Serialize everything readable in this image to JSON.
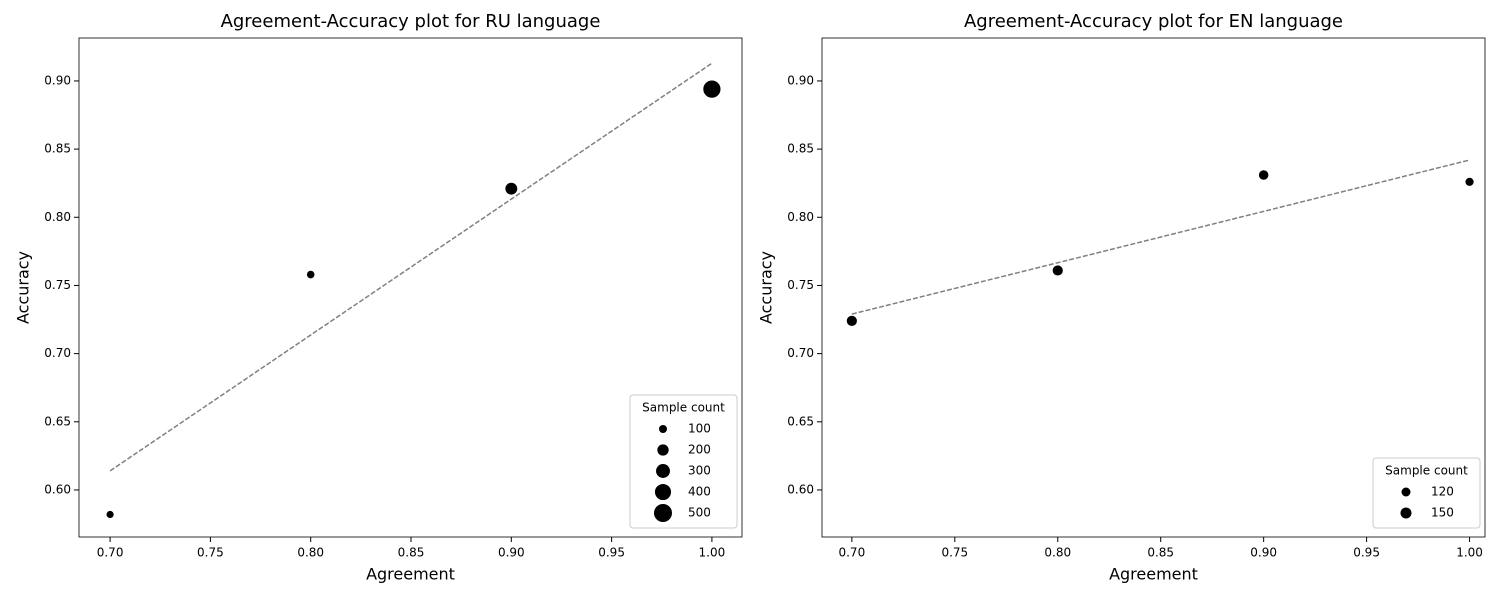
{
  "chart_data": [
    {
      "type": "scatter",
      "title": "Agreement-Accuracy plot for RU language",
      "x_label": "Agreement",
      "y_label": "Accuracy",
      "x": [
        0.7,
        0.8,
        0.9,
        1.0
      ],
      "y": [
        0.582,
        0.758,
        0.821,
        0.894
      ],
      "sizes": [
        100,
        110,
        250,
        500
      ],
      "color": "#000000",
      "trend": {
        "x": [
          0.7,
          1.0
        ],
        "y": [
          0.614,
          0.913
        ],
        "color": "#808080"
      },
      "legend_title": "Sample count",
      "legend_sizes": [
        100,
        200,
        300,
        400,
        500
      ],
      "legend_loc": "lower right",
      "xlim": [
        0.6845,
        1.015
      ],
      "ylim": [
        0.5655,
        0.9315
      ],
      "xticks": [
        {
          "value": 0.7,
          "label": "0.70"
        },
        0.75,
        {
          "value": 0.8,
          "label": "0.80"
        },
        0.85,
        {
          "value": 0.9,
          "label": "0.90"
        },
        0.95,
        {
          "value": 1.0,
          "label": "1.00"
        }
      ],
      "yticks": [
        {
          "value": 0.6,
          "label": "0.60"
        },
        0.65,
        {
          "value": 0.7,
          "label": "0.70"
        },
        0.75,
        {
          "value": 0.8,
          "label": "0.80"
        },
        0.85,
        {
          "value": 0.9,
          "label": "0.90"
        }
      ]
    },
    {
      "type": "scatter",
      "title": "Agreement-Accuracy plot for EN language",
      "x_label": "Agreement",
      "y_label": "Accuracy",
      "x": [
        0.7,
        0.8,
        0.9,
        1.0
      ],
      "y": [
        0.724,
        0.761,
        0.831,
        0.826
      ],
      "sizes": [
        150,
        150,
        140,
        120
      ],
      "color": "#000000",
      "trend": {
        "x": [
          0.7,
          1.0
        ],
        "y": [
          0.729,
          0.842
        ],
        "color": "#808080"
      },
      "legend_title": "Sample count",
      "legend_sizes": [
        120,
        150
      ],
      "legend_loc": "lower right",
      "xlim": [
        0.6855,
        1.0075
      ],
      "ylim": [
        0.5655,
        0.9315
      ],
      "xticks": [
        {
          "value": 0.7,
          "label": "0.70"
        },
        0.75,
        {
          "value": 0.8,
          "label": "0.80"
        },
        0.85,
        {
          "value": 0.9,
          "label": "0.90"
        },
        0.95,
        {
          "value": 1.0,
          "label": "1.00"
        }
      ],
      "yticks": [
        {
          "value": 0.6,
          "label": "0.60"
        },
        0.65,
        {
          "value": 0.7,
          "label": "0.70"
        },
        0.75,
        {
          "value": 0.8,
          "label": "0.80"
        },
        0.85,
        {
          "value": 0.9,
          "label": "0.90"
        }
      ]
    }
  ]
}
